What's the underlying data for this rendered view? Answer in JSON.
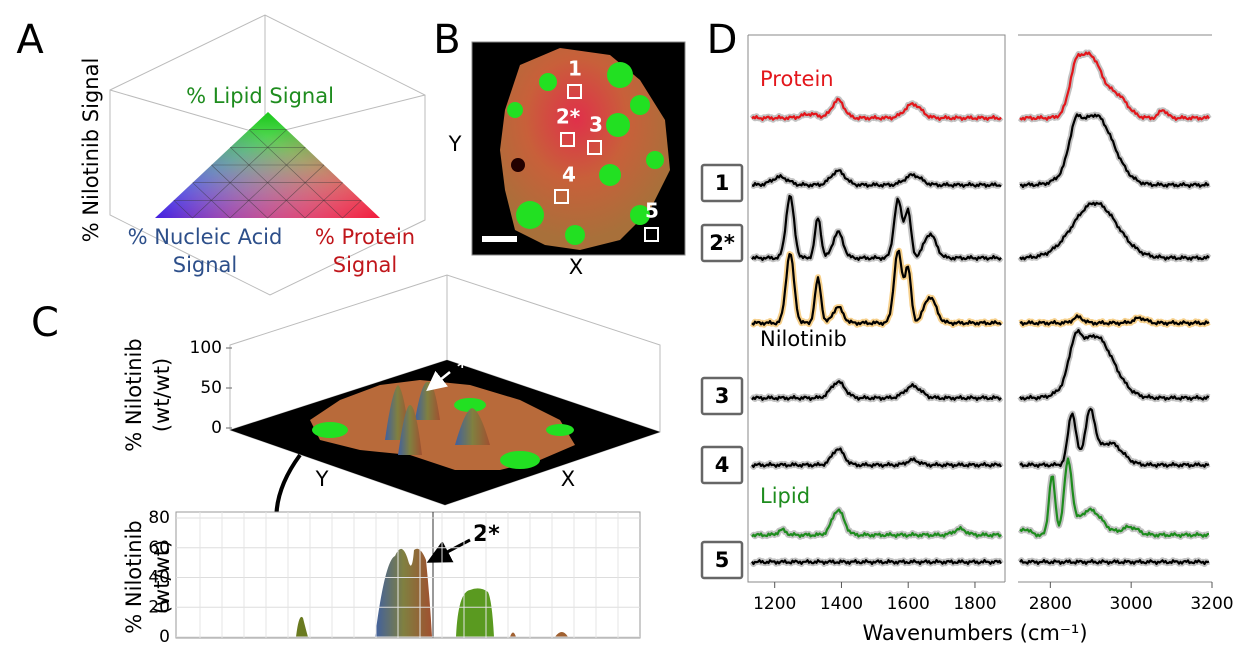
{
  "panels": {
    "a": {
      "label": "A",
      "z_axis": "% Nilotinib Signal",
      "lipid": "% Lipid Signal",
      "nucleic": [
        "% Nucleic Acid",
        "Signal"
      ],
      "protein": [
        "% Protein",
        "Signal"
      ]
    },
    "b": {
      "label": "B",
      "y_axis": "Y",
      "x_axis": "X",
      "regions": [
        "1",
        "2*",
        "3",
        "4",
        "5"
      ]
    },
    "c": {
      "label": "C",
      "z_axis": [
        "% Nilotinib",
        "(wt/wt)"
      ],
      "zlim": [
        0,
        100
      ],
      "zticks": [
        0,
        50,
        100
      ],
      "y_axis": "Y",
      "x_axis": "X",
      "marker": "*",
      "profile": {
        "y_axis": [
          "% Nilotinib",
          "(wt/wt)"
        ],
        "ylim": [
          0,
          80
        ],
        "yticks": [
          0,
          20,
          40,
          60,
          80
        ],
        "annotation": "2*"
      }
    },
    "d": {
      "label": "D",
      "x_axis": "Wavenumbers (cm⁻¹)",
      "left": {
        "xlim": [
          1120,
          1890
        ],
        "xticks": [
          1200,
          1400,
          1600,
          1800
        ]
      },
      "right": {
        "xlim": [
          2720,
          3200
        ],
        "xticks": [
          2800,
          3000,
          3200
        ]
      },
      "spectra": [
        {
          "label": "Protein",
          "color": "#e3161b",
          "boxed": false
        },
        {
          "label": "1",
          "color": "#000000",
          "boxed": true
        },
        {
          "label": "2*",
          "color": "#000000",
          "boxed": true
        },
        {
          "label": "Nilotinib",
          "color": "#000000",
          "boxed": false
        },
        {
          "label": "3",
          "color": "#000000",
          "boxed": true
        },
        {
          "label": "4",
          "color": "#000000",
          "boxed": true
        },
        {
          "label": "Lipid",
          "color": "#1e8c1e",
          "boxed": false
        },
        {
          "label": "5",
          "color": "#000000",
          "boxed": true
        }
      ]
    }
  }
}
